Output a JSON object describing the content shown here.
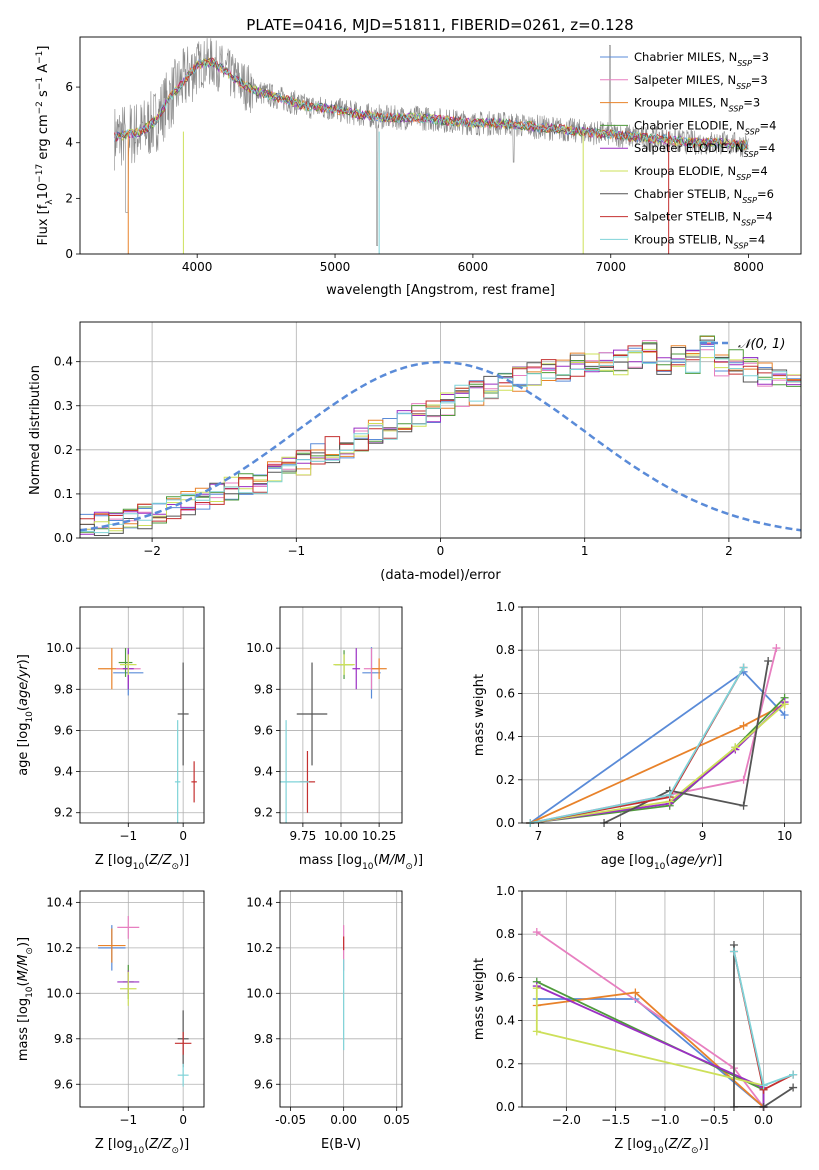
{
  "page_title": "PLATE=0416, MJD=51811, FIBERID=0261, z=0.128",
  "colors": {
    "Chabrier MILES": "#5a8bd8",
    "Salpeter MILES": "#e77fc0",
    "Kroupa MILES": "#e8822a",
    "Chabrier ELODIE": "#4f9a3c",
    "Salpeter ELODIE": "#9b2fc4",
    "Kroupa ELODIE": "#cde05a",
    "Chabrier STELIB": "#555555",
    "Salpeter STELIB": "#c43030",
    "Kroupa STELIB": "#7fd3d8",
    "data": "#888888",
    "normal_curve": "#5a8bd8"
  },
  "chart_data": [
    {
      "id": "spectrum",
      "type": "line",
      "title": "PLATE=0416, MJD=51811, FIBERID=0261, z=0.128",
      "xlabel": "wavelength [Angstrom, rest frame]",
      "ylabel": "Flux [f",
      "xlim": [
        3150,
        8380
      ],
      "ylim": [
        0,
        7.8
      ],
      "xticks": [
        4000,
        5000,
        6000,
        7000,
        8000
      ],
      "yticks": [
        0,
        2,
        4,
        6
      ],
      "legend_position": "right",
      "series": [
        {
          "name": "Chabrier MILES",
          "nssp": "3"
        },
        {
          "name": "Salpeter MILES",
          "nssp": "3"
        },
        {
          "name": "Kroupa MILES",
          "nssp": "3"
        },
        {
          "name": "Chabrier ELODIE",
          "nssp": "4"
        },
        {
          "name": "Salpeter ELODIE",
          "nssp": "4"
        },
        {
          "name": "Kroupa ELODIE",
          "nssp": "4"
        },
        {
          "name": "Chabrier STELIB",
          "nssp": "6"
        },
        {
          "name": "Salpeter STELIB",
          "nssp": "4"
        },
        {
          "name": "Kroupa STELIB",
          "nssp": "4"
        }
      ],
      "model_curve": {
        "x": [
          3400,
          3600,
          3700,
          3800,
          3900,
          4000,
          4100,
          4200,
          4300,
          4400,
          4600,
          4800,
          5000,
          5200,
          5400,
          5600,
          5800,
          6000,
          6200,
          6400,
          6600,
          6800,
          7000,
          7200,
          7400,
          7600,
          7800,
          8000,
          8200,
          8380
        ],
        "y": [
          4.2,
          4.4,
          4.8,
          5.6,
          6.2,
          6.8,
          6.9,
          6.6,
          6.2,
          5.9,
          5.6,
          5.3,
          5.2,
          5.0,
          4.9,
          4.9,
          4.8,
          4.7,
          4.7,
          4.6,
          4.5,
          4.4,
          4.3,
          4.2,
          4.1,
          4.0,
          4.0,
          3.9,
          3.9,
          3.8
        ]
      }
    },
    {
      "id": "residuals",
      "type": "step",
      "xlabel": "(data-model)/error",
      "ylabel": "Normed distribution",
      "xlim": [
        -2.5,
        2.5
      ],
      "ylim": [
        0,
        0.49
      ],
      "xticks": [
        -2,
        -1,
        0,
        1,
        2
      ],
      "yticks": [
        0.0,
        0.1,
        0.2,
        0.3,
        0.4
      ],
      "grid": true,
      "legend_position": "top-right",
      "legend_label": "𝒩(0, 1)",
      "bin_width": 0.1,
      "bin_start": -2.5,
      "histogram": [
        0.03,
        0.03,
        0.04,
        0.05,
        0.05,
        0.06,
        0.07,
        0.08,
        0.09,
        0.1,
        0.11,
        0.12,
        0.13,
        0.15,
        0.16,
        0.17,
        0.19,
        0.2,
        0.21,
        0.22,
        0.24,
        0.25,
        0.26,
        0.28,
        0.29,
        0.3,
        0.32,
        0.33,
        0.34,
        0.35,
        0.36,
        0.37,
        0.38,
        0.38,
        0.39,
        0.39,
        0.4,
        0.4,
        0.41,
        0.42,
        0.4,
        0.41,
        0.4,
        0.43,
        0.39,
        0.4,
        0.38,
        0.37,
        0.37,
        0.35,
        0.33,
        0.33,
        0.33,
        0.31,
        0.3,
        0.3,
        0.29,
        0.28,
        0.27,
        0.26,
        0.25,
        0.23,
        0.22,
        0.2,
        0.19,
        0.18,
        0.16,
        0.15,
        0.14,
        0.13,
        0.12,
        0.1,
        0.09,
        0.08,
        0.07,
        0.06,
        0.05,
        0.05,
        0.04,
        0.04,
        0.03,
        0.03,
        0.03,
        0.03,
        0.02,
        0.02,
        0.02,
        0.02,
        0.02,
        0.02,
        0.02,
        0.02,
        0.02,
        0.02,
        0.02,
        0.02,
        0.02,
        0.02,
        0.02,
        0.02
      ]
    },
    {
      "id": "age_vs_Z",
      "type": "errorbar",
      "xlabel": "Z [log",
      "ylabel": "age  [log",
      "xlim": [
        -1.88,
        0.38
      ],
      "ylim": [
        9.15,
        10.2
      ],
      "xticks": [
        -1,
        0
      ],
      "yticks": [
        9.2,
        9.4,
        9.6,
        9.8,
        10.0
      ],
      "grid": true,
      "points": [
        {
          "s": "Chabrier MILES",
          "x": -1.0,
          "y": 9.88,
          "dx": 0.55,
          "dy": 0.22
        },
        {
          "s": "Kroupa MILES",
          "x": -1.3,
          "y": 9.9,
          "dx": 0.5,
          "dy": 0.2
        },
        {
          "s": "Salpeter MILES",
          "x": -1.0,
          "y": 9.9,
          "dx": 0.45,
          "dy": 0.15
        },
        {
          "s": "Chabrier ELODIE",
          "x": -1.05,
          "y": 9.93,
          "dx": 0.25,
          "dy": 0.14
        },
        {
          "s": "Salpeter ELODIE",
          "x": -1.0,
          "y": 9.9,
          "dx": 0.2,
          "dy": 0.2
        },
        {
          "s": "Kroupa ELODIE",
          "x": -1.0,
          "y": 9.92,
          "dx": 0.3,
          "dy": 0.1
        },
        {
          "s": "Chabrier STELIB",
          "x": 0.0,
          "y": 9.68,
          "dx": 0.2,
          "dy": 0.5
        },
        {
          "s": "Salpeter STELIB",
          "x": 0.2,
          "y": 9.35,
          "dx": 0.1,
          "dy": 0.2
        },
        {
          "s": "Kroupa STELIB",
          "x": -0.1,
          "y": 9.35,
          "dx": 0.1,
          "dy": 0.6
        }
      ]
    },
    {
      "id": "age_vs_mass",
      "type": "errorbar",
      "xlabel": "mass [log",
      "ylabel": "",
      "xlim": [
        9.6,
        10.4
      ],
      "ylim": [
        9.15,
        10.2
      ],
      "xticks": [
        9.75,
        10.0,
        10.25
      ],
      "yticks": [
        9.2,
        9.4,
        9.6,
        9.8,
        10.0
      ],
      "grid": true,
      "points": [
        {
          "s": "Chabrier MILES",
          "x": 10.2,
          "y": 9.88,
          "dx": 0.12,
          "dy": 0.25
        },
        {
          "s": "Salpeter MILES",
          "x": 10.2,
          "y": 9.9,
          "dx": 0.1,
          "dy": 0.2
        },
        {
          "s": "Kroupa MILES",
          "x": 10.25,
          "y": 9.9,
          "dx": 0.1,
          "dy": 0.1
        },
        {
          "s": "Chabrier ELODIE",
          "x": 10.02,
          "y": 9.92,
          "dx": 0.12,
          "dy": 0.14
        },
        {
          "s": "Salpeter ELODIE",
          "x": 10.1,
          "y": 9.9,
          "dx": 0.05,
          "dy": 0.2
        },
        {
          "s": "Kroupa ELODIE",
          "x": 10.02,
          "y": 9.92,
          "dx": 0.14,
          "dy": 0.1
        },
        {
          "s": "Chabrier STELIB",
          "x": 9.81,
          "y": 9.68,
          "dx": 0.2,
          "dy": 0.5
        },
        {
          "s": "Salpeter STELIB",
          "x": 9.78,
          "y": 9.35,
          "dx": 0.1,
          "dy": 0.3
        },
        {
          "s": "Kroupa STELIB",
          "x": 9.64,
          "y": 9.35,
          "dx": 0.3,
          "dy": 0.6
        }
      ]
    },
    {
      "id": "weight_vs_age",
      "type": "line",
      "xlabel": "age  [log",
      "ylabel": "mass weight",
      "xlim": [
        6.8,
        10.2
      ],
      "ylim": [
        0,
        1
      ],
      "xticks": [
        7,
        8,
        9,
        10
      ],
      "yticks": [
        0.0,
        0.2,
        0.4,
        0.6,
        0.8,
        1.0
      ],
      "grid": true,
      "series": [
        {
          "s": "Chabrier MILES",
          "x": [
            6.9,
            9.5,
            10.0
          ],
          "y": [
            0.0,
            0.7,
            0.5
          ]
        },
        {
          "s": "Salpeter MILES",
          "x": [
            6.9,
            9.5,
            9.9
          ],
          "y": [
            0.0,
            0.2,
            0.81
          ]
        },
        {
          "s": "Kroupa MILES",
          "x": [
            6.9,
            9.5,
            10.0
          ],
          "y": [
            0.0,
            0.45,
            0.55
          ]
        },
        {
          "s": "Chabrier ELODIE",
          "x": [
            6.9,
            8.6,
            9.4,
            10.0
          ],
          "y": [
            0.0,
            0.08,
            0.35,
            0.58
          ]
        },
        {
          "s": "Salpeter ELODIE",
          "x": [
            6.9,
            8.6,
            9.4,
            10.0
          ],
          "y": [
            0.0,
            0.09,
            0.34,
            0.56
          ]
        },
        {
          "s": "Kroupa ELODIE",
          "x": [
            6.9,
            8.6,
            9.4,
            10.0
          ],
          "y": [
            0.0,
            0.1,
            0.35,
            0.55
          ]
        },
        {
          "s": "Chabrier STELIB",
          "x": [
            7.8,
            8.6,
            9.5,
            9.8
          ],
          "y": [
            0.0,
            0.15,
            0.08,
            0.75
          ]
        },
        {
          "s": "Salpeter STELIB",
          "x": [
            6.9,
            8.6,
            9.5
          ],
          "y": [
            0.0,
            0.12,
            0.72
          ]
        },
        {
          "s": "Kroupa STELIB",
          "x": [
            6.9,
            8.6,
            9.5
          ],
          "y": [
            0.0,
            0.13,
            0.72
          ]
        }
      ]
    },
    {
      "id": "mass_vs_Z",
      "type": "errorbar",
      "xlabel": "Z [log",
      "ylabel": "mass [log",
      "xlim": [
        -1.88,
        0.38
      ],
      "ylim": [
        9.5,
        10.45
      ],
      "xticks": [
        -1,
        0
      ],
      "yticks": [
        9.6,
        9.8,
        10.0,
        10.2,
        10.4
      ],
      "grid": true,
      "points": [
        {
          "s": "Chabrier MILES",
          "x": -1.3,
          "y": 10.2,
          "dx": 0.5,
          "dy": 0.2
        },
        {
          "s": "Kroupa MILES",
          "x": -1.3,
          "y": 10.21,
          "dx": 0.5,
          "dy": 0.15
        },
        {
          "s": "Salpeter MILES",
          "x": -1.0,
          "y": 10.29,
          "dx": 0.4,
          "dy": 0.1
        },
        {
          "s": "Chabrier ELODIE",
          "x": -1.0,
          "y": 10.05,
          "dx": 0.2,
          "dy": 0.15
        },
        {
          "s": "Salpeter ELODIE",
          "x": -1.0,
          "y": 10.05,
          "dx": 0.4,
          "dy": 0.1
        },
        {
          "s": "Kroupa ELODIE",
          "x": -1.0,
          "y": 10.02,
          "dx": 0.3,
          "dy": 0.15
        },
        {
          "s": "Chabrier STELIB",
          "x": 0.0,
          "y": 9.8,
          "dx": 0.2,
          "dy": 0.25
        },
        {
          "s": "Salpeter STELIB",
          "x": 0.0,
          "y": 9.78,
          "dx": 0.3,
          "dy": 0.1
        },
        {
          "s": "Kroupa STELIB",
          "x": 0.0,
          "y": 9.64,
          "dx": 0.2,
          "dy": 0.1
        }
      ]
    },
    {
      "id": "mass_vs_EBV",
      "type": "errorbar",
      "xlabel": "E(B-V)",
      "ylabel": "",
      "xlim": [
        -0.06,
        0.055
      ],
      "ylim": [
        9.5,
        10.45
      ],
      "xticks": [
        -0.05,
        0.0,
        0.05
      ],
      "xticklabels": [
        "-0.05",
        "0.00",
        "0.05"
      ],
      "yticks": [
        9.6,
        9.8,
        10.0,
        10.2,
        10.4
      ],
      "grid": true,
      "points": [
        {
          "s": "Salpeter MILES",
          "x": 0.0,
          "y": 10.2,
          "dx": 0.0,
          "dy": 0.2
        },
        {
          "s": "Salpeter STELIB",
          "x": 0.0,
          "y": 10.22,
          "dx": 0.0,
          "dy": 0.06
        },
        {
          "s": "Kroupa STELIB",
          "x": 0.0,
          "y": 9.95,
          "dx": 0.0,
          "dy": 0.4
        }
      ]
    },
    {
      "id": "weight_vs_Z",
      "type": "line",
      "xlabel": "Z [log",
      "ylabel": "mass weight",
      "xlim": [
        -2.45,
        0.38
      ],
      "ylim": [
        0,
        1
      ],
      "xticks": [
        -2.0,
        -1.5,
        -1.0,
        -0.5,
        0.0
      ],
      "xticklabels": [
        "−2.0",
        "−1.5",
        "−1.0",
        "−0.5",
        "0.0"
      ],
      "yticks": [
        0.0,
        0.2,
        0.4,
        0.6,
        0.8,
        1.0
      ],
      "grid": true,
      "series": [
        {
          "s": "Chabrier MILES",
          "x": [
            -2.3,
            -1.3,
            0.0
          ],
          "y": [
            0.5,
            0.5,
            0.0
          ]
        },
        {
          "s": "Salpeter MILES",
          "x": [
            -2.3,
            -0.3,
            0.0
          ],
          "y": [
            0.81,
            0.18,
            0.0
          ]
        },
        {
          "s": "Kroupa MILES",
          "x": [
            -2.3,
            -1.3,
            0.0
          ],
          "y": [
            0.47,
            0.53,
            0.0
          ]
        },
        {
          "s": "Chabrier ELODIE",
          "x": [
            -2.3,
            0.0,
            0.0
          ],
          "y": [
            0.58,
            0.08,
            0.0
          ]
        },
        {
          "s": "Salpeter ELODIE",
          "x": [
            -2.3,
            0.0,
            0.0
          ],
          "y": [
            0.56,
            0.09,
            0.0
          ]
        },
        {
          "s": "Kroupa ELODIE",
          "x": [
            -2.3,
            -2.3,
            0.0
          ],
          "y": [
            0.55,
            0.35,
            0.1
          ]
        },
        {
          "s": "Chabrier STELIB",
          "x": [
            -0.3,
            -0.3,
            0.0,
            0.3
          ],
          "y": [
            0.75,
            0.0,
            0.0,
            0.09
          ]
        },
        {
          "s": "Salpeter STELIB",
          "x": [
            -0.3,
            0.0,
            0.3
          ],
          "y": [
            0.72,
            0.08,
            0.15
          ]
        },
        {
          "s": "Kroupa STELIB",
          "x": [
            -0.3,
            0.0,
            0.3
          ],
          "y": [
            0.72,
            0.1,
            0.15
          ]
        }
      ]
    }
  ]
}
